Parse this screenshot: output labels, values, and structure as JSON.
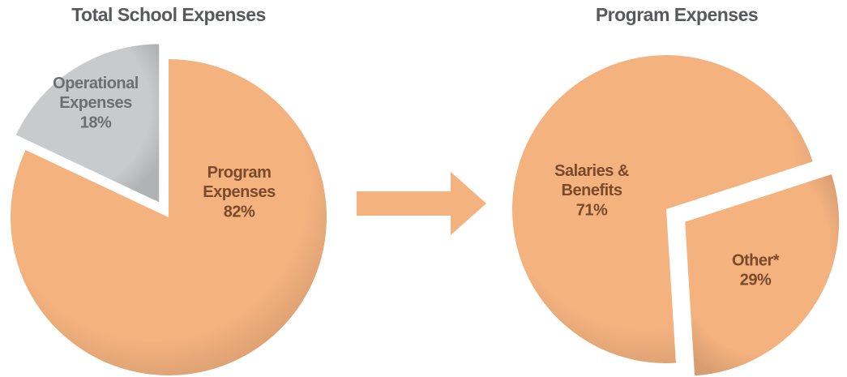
{
  "chart_data": [
    {
      "type": "pie",
      "title": "Total School Expenses",
      "categories": [
        "Operational\nExpenses",
        "Program\nExpenses"
      ],
      "values": [
        18,
        82
      ],
      "value_labels": [
        "18%",
        "82%"
      ],
      "colors": [
        "#c9cacc",
        "#f4b27f"
      ]
    },
    {
      "type": "pie",
      "title": "Program Expenses",
      "categories": [
        "Salaries &\nBenefits",
        "Other*"
      ],
      "values": [
        71,
        29
      ],
      "value_labels": [
        "71%",
        "29%"
      ],
      "colors": [
        "#f4b27f",
        "#f4b27f"
      ]
    }
  ]
}
